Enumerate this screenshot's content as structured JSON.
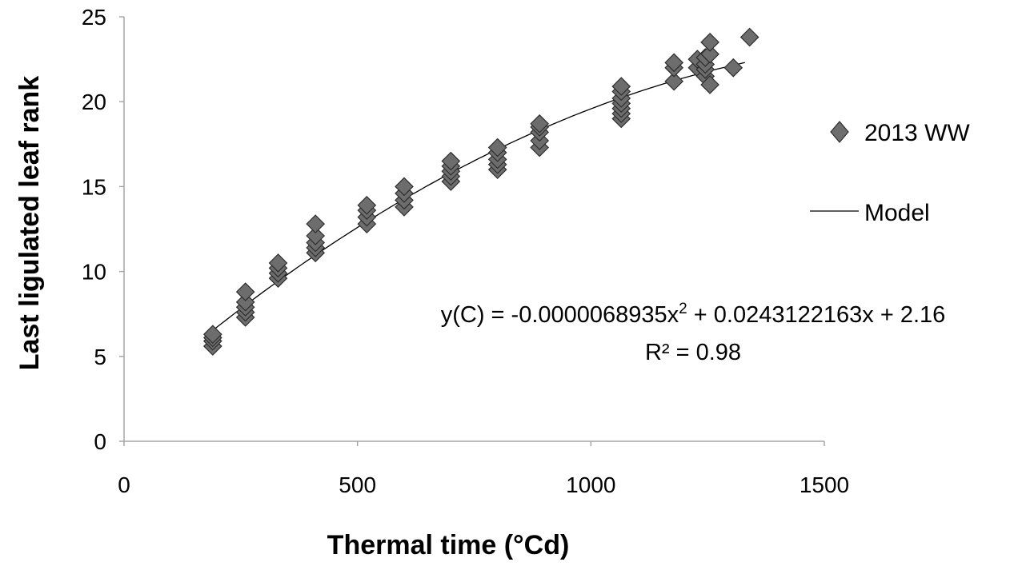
{
  "chart_data": {
    "type": "scatter",
    "xlabel": "Thermal time (°Cd)",
    "ylabel": "Last ligulated leaf rank",
    "xlim": [
      0,
      1500
    ],
    "ylim": [
      0,
      25
    ],
    "xticks": [
      0,
      500,
      1000,
      1500
    ],
    "yticks": [
      0,
      5,
      10,
      15,
      20,
      25
    ],
    "x_tick_labels": [
      "0",
      "500",
      "1000",
      "1500"
    ],
    "y_tick_labels": [
      "0",
      "5",
      "10",
      "15",
      "20",
      "25"
    ],
    "grid": false,
    "legend_position": "right",
    "series": [
      {
        "name": "2013 WW",
        "kind": "markers",
        "marker": "diamond",
        "color": "#6d6d6d",
        "points": [
          [
            190,
            5.6
          ],
          [
            190,
            5.9
          ],
          [
            190,
            6.1
          ],
          [
            190,
            6.3
          ],
          [
            260,
            7.3
          ],
          [
            260,
            7.6
          ],
          [
            260,
            7.9
          ],
          [
            260,
            8.2
          ],
          [
            260,
            8.8
          ],
          [
            330,
            9.6
          ],
          [
            330,
            9.9
          ],
          [
            330,
            10.2
          ],
          [
            330,
            10.5
          ],
          [
            410,
            11.1
          ],
          [
            410,
            11.4
          ],
          [
            410,
            11.7
          ],
          [
            410,
            12.1
          ],
          [
            410,
            12.8
          ],
          [
            520,
            12.8
          ],
          [
            520,
            13.2
          ],
          [
            520,
            13.6
          ],
          [
            520,
            13.9
          ],
          [
            600,
            13.8
          ],
          [
            600,
            14.2
          ],
          [
            600,
            14.6
          ],
          [
            600,
            15.0
          ],
          [
            700,
            15.3
          ],
          [
            700,
            15.6
          ],
          [
            700,
            15.9
          ],
          [
            700,
            16.2
          ],
          [
            700,
            16.5
          ],
          [
            800,
            16.0
          ],
          [
            800,
            16.3
          ],
          [
            800,
            16.6
          ],
          [
            800,
            17.0
          ],
          [
            800,
            17.3
          ],
          [
            890,
            17.3
          ],
          [
            890,
            17.7
          ],
          [
            890,
            18.2
          ],
          [
            890,
            18.5
          ],
          [
            890,
            18.7
          ],
          [
            1065,
            19.0
          ],
          [
            1065,
            19.3
          ],
          [
            1065,
            19.6
          ],
          [
            1065,
            19.9
          ],
          [
            1065,
            20.2
          ],
          [
            1065,
            20.6
          ],
          [
            1065,
            20.9
          ],
          [
            1178,
            21.2
          ],
          [
            1178,
            22.0
          ],
          [
            1178,
            22.3
          ],
          [
            1228,
            22.0
          ],
          [
            1228,
            22.5
          ],
          [
            1245,
            21.5
          ],
          [
            1245,
            21.9
          ],
          [
            1245,
            22.2
          ],
          [
            1245,
            22.6
          ],
          [
            1255,
            21.0
          ],
          [
            1255,
            22.8
          ],
          [
            1255,
            23.5
          ],
          [
            1305,
            22.0
          ],
          [
            1340,
            23.8
          ]
        ]
      },
      {
        "name": "Model",
        "kind": "line",
        "color": "#000000",
        "x_range": [
          190,
          1330
        ],
        "coefficients": {
          "a": -6.8935e-06,
          "b": 0.0243122163,
          "c": 2.16
        }
      }
    ],
    "annotations": {
      "equation_prefix": "y(C) = -0.0000068935x",
      "equation_exponent": "2",
      "equation_suffix": " + 0.0243122163x + 2.16",
      "r_squared": "R² = 0.98"
    }
  }
}
